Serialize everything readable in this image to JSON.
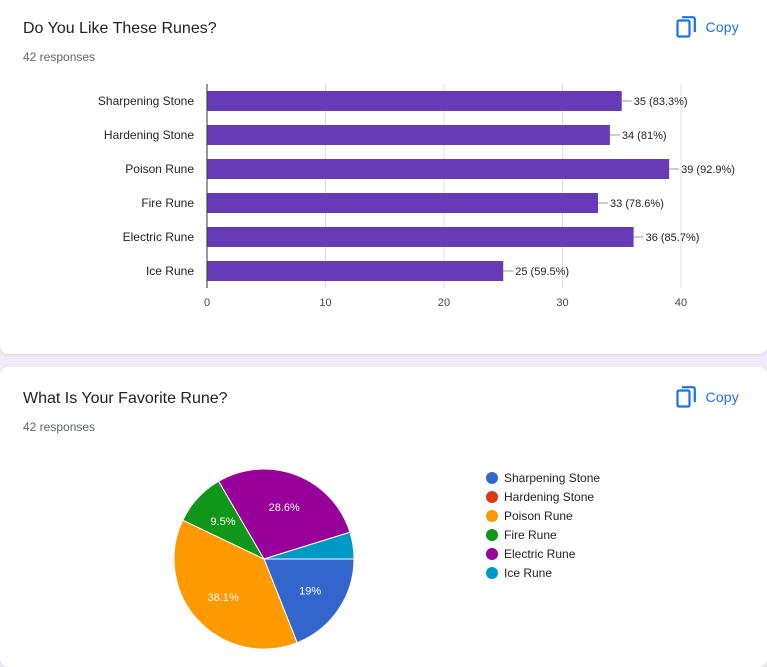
{
  "bar_question": {
    "title": "Do You Like These Runes?",
    "responses": "42 responses",
    "copy_label": "Copy"
  },
  "pie_question": {
    "title": "What Is Your Favorite Rune?",
    "responses": "42 responses",
    "copy_label": "Copy"
  },
  "colors": {
    "bar": "#673ab7",
    "accent": "#673ab7",
    "link": "#1a73e8",
    "background": "#f0ebf8"
  },
  "icons": {
    "copy": "copy-icon"
  },
  "chart_data": [
    {
      "type": "bar",
      "orientation": "horizontal",
      "categories": [
        "Sharpening Stone",
        "Hardening Stone",
        "Poison Rune",
        "Fire Rune",
        "Electric Rune",
        "Ice Rune"
      ],
      "values": [
        35,
        34,
        39,
        33,
        36,
        25
      ],
      "data_labels": [
        "35 (83.3%)",
        "34 (81%)",
        "39 (92.9%)",
        "33 (78.6%)",
        "36 (85.7%)",
        "25 (59.5%)"
      ],
      "xticks": [
        0,
        10,
        20,
        30,
        40
      ],
      "xlim": [
        0,
        40
      ],
      "grid": true,
      "color": "#673ab7"
    },
    {
      "type": "pie",
      "categories": [
        "Sharpening Stone",
        "Hardening Stone",
        "Poison Rune",
        "Fire Rune",
        "Electric Rune",
        "Ice Rune"
      ],
      "values": [
        19,
        0,
        38.1,
        9.5,
        28.6,
        4.8
      ],
      "slice_labels": [
        "19%",
        "",
        "38.1%",
        "9.5%",
        "28.6%",
        ""
      ],
      "colors": [
        "#3366cc",
        "#dc3912",
        "#ff9900",
        "#109618",
        "#990099",
        "#0099c6"
      ],
      "legend_position": "right"
    }
  ]
}
